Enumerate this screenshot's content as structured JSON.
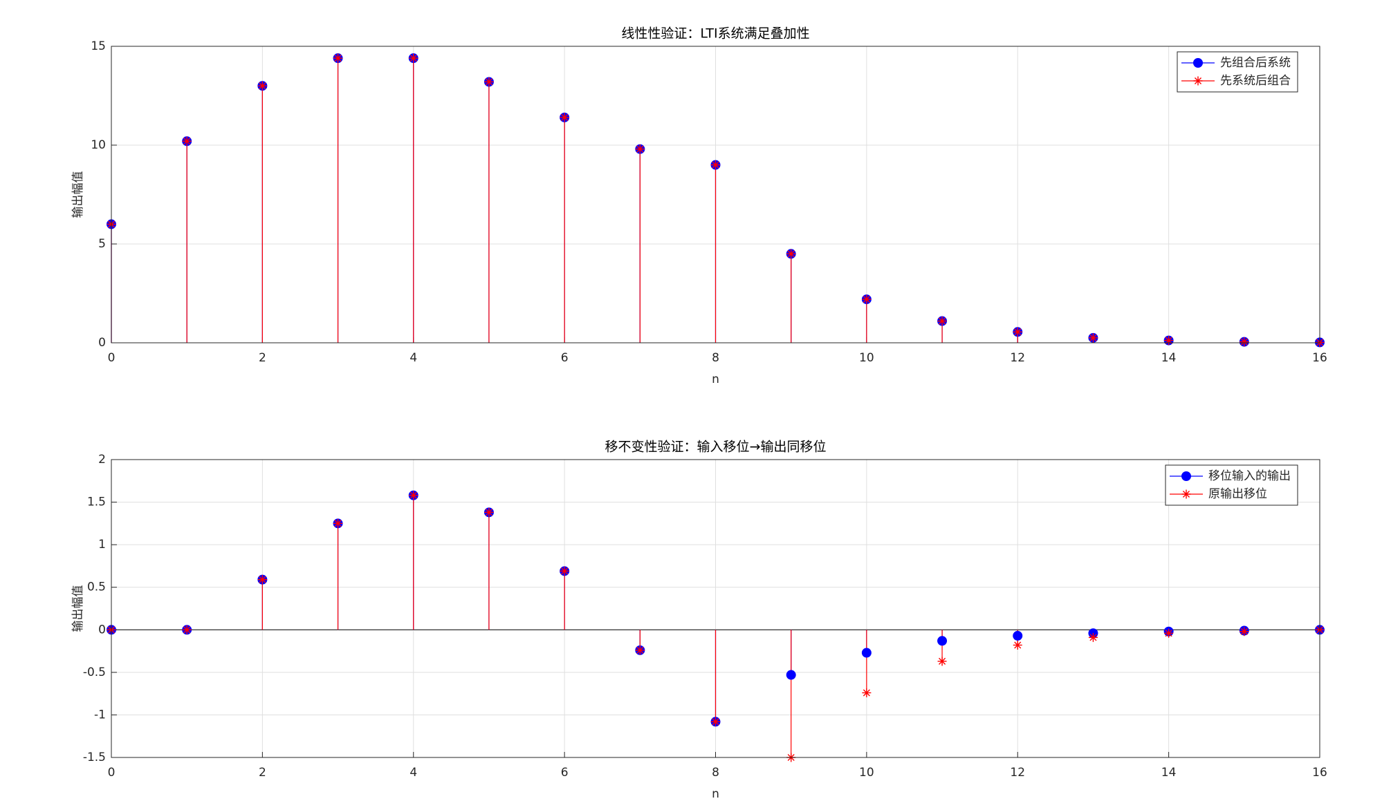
{
  "chart_data": [
    {
      "type": "stem",
      "title": "线性性验证：LTI系统满足叠加性",
      "xlabel": "n",
      "ylabel": "输出幅值",
      "x": [
        0,
        1,
        2,
        3,
        4,
        5,
        6,
        7,
        8,
        9,
        10,
        11,
        12,
        13,
        14,
        15,
        16
      ],
      "series": [
        {
          "name": "先组合后系统",
          "color": "#0000ff",
          "marker": "o",
          "values": [
            6.0,
            10.2,
            13.0,
            14.4,
            14.4,
            13.2,
            11.4,
            9.8,
            9.0,
            4.5,
            2.2,
            1.1,
            0.55,
            0.25,
            0.12,
            0.05,
            0.02
          ]
        },
        {
          "name": "先系统后组合",
          "color": "#ff0000",
          "marker": "*",
          "values": [
            6.0,
            10.2,
            13.0,
            14.4,
            14.4,
            13.2,
            11.4,
            9.8,
            9.0,
            4.5,
            2.2,
            1.1,
            0.55,
            0.25,
            0.12,
            0.05,
            0.02
          ]
        }
      ],
      "xlim": [
        0,
        16
      ],
      "xticks": [
        0,
        2,
        4,
        6,
        8,
        10,
        12,
        14,
        16
      ],
      "ylim": [
        0,
        15
      ],
      "yticks": [
        0,
        5,
        10,
        15
      ],
      "grid": true,
      "legend": "northeast"
    },
    {
      "type": "stem",
      "title": "移不变性验证：输入移位→输出同移位",
      "xlabel": "n",
      "ylabel": "输出幅值",
      "x": [
        0,
        1,
        2,
        3,
        4,
        5,
        6,
        7,
        8,
        9,
        10,
        11,
        12,
        13,
        14,
        15,
        16
      ],
      "series": [
        {
          "name": "移位输入的输出",
          "color": "#0000ff",
          "marker": "o",
          "values": [
            0,
            0,
            0.59,
            1.25,
            1.58,
            1.38,
            0.69,
            -0.24,
            -1.08,
            -0.53,
            -0.27,
            -0.13,
            -0.07,
            -0.04,
            -0.02,
            -0.01,
            0
          ]
        },
        {
          "name": "原输出移位",
          "color": "#ff0000",
          "marker": "*",
          "values": [
            0,
            0,
            0.59,
            1.25,
            1.58,
            1.38,
            0.69,
            -0.24,
            -1.08,
            -1.5,
            -0.74,
            -0.37,
            -0.18,
            -0.09,
            -0.04,
            -0.02,
            0
          ]
        }
      ],
      "xlim": [
        0,
        16
      ],
      "xticks": [
        0,
        2,
        4,
        6,
        8,
        10,
        12,
        14,
        16
      ],
      "ylim": [
        -1.5,
        2
      ],
      "yticks": [
        -1.5,
        -1,
        -0.5,
        0,
        0.5,
        1,
        1.5,
        2
      ],
      "grid": true,
      "legend": "northeast"
    }
  ]
}
